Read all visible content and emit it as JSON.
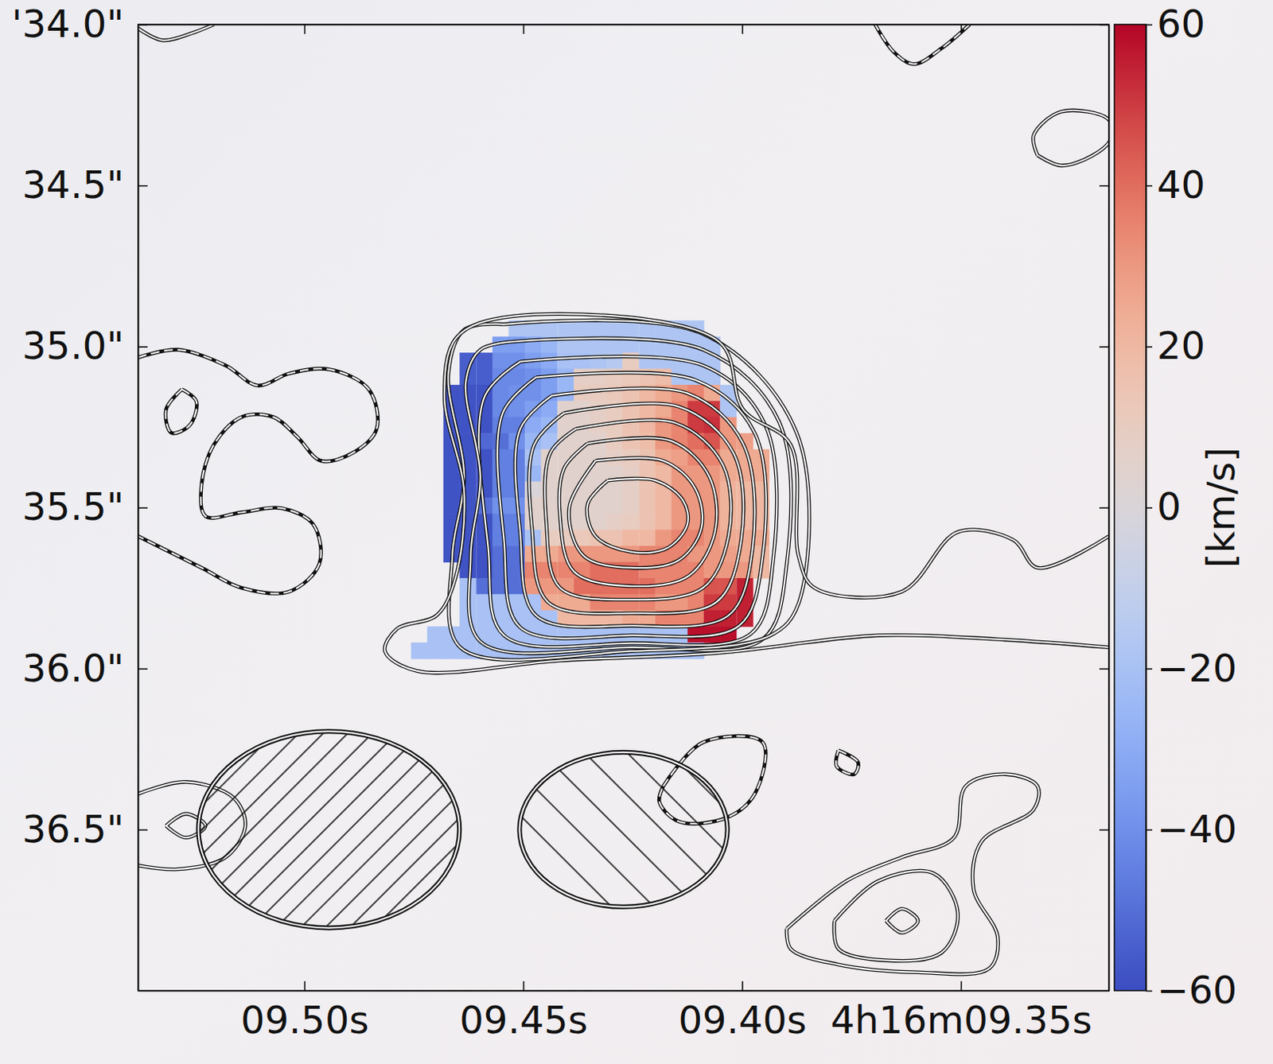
{
  "chart_data": {
    "type": "heatmap",
    "xlim": [
      9.538,
      9.3162
    ],
    "ylim": [
      34.0,
      37.0
    ],
    "xticks": [
      {
        "value": 9.5,
        "label": "09.50s"
      },
      {
        "value": 9.45,
        "label": "09.45s"
      },
      {
        "value": 9.4,
        "label": "09.40s"
      },
      {
        "value": 9.35,
        "label": "4h16m09.35s"
      }
    ],
    "yticks": [
      {
        "value": 34.0,
        "label": "'34.0\""
      },
      {
        "value": 34.5,
        "label": "34.5\""
      },
      {
        "value": 35.0,
        "label": "35.0\""
      },
      {
        "value": 35.5,
        "label": "35.5\""
      },
      {
        "value": 36.0,
        "label": "36.0\""
      },
      {
        "value": 36.5,
        "label": "36.5\""
      }
    ],
    "colorbar": {
      "range": [
        -60,
        60
      ],
      "ticks": [
        {
          "value": -60,
          "label": "−60"
        },
        {
          "value": -40,
          "label": "−40"
        },
        {
          "value": -20,
          "label": "−20"
        },
        0,
        20,
        40,
        60
      ],
      "label": "[km/s]"
    },
    "cells": {
      "x": [
        9.4738,
        9.4701,
        9.4664,
        9.4627,
        9.4589,
        9.4552,
        9.4515,
        9.4478,
        9.4441,
        9.4403,
        9.4366,
        9.4329,
        9.4292,
        9.4255,
        9.4217,
        9.418,
        9.4143,
        9.4106,
        9.4069,
        9.4032,
        9.3994,
        9.3957
      ],
      "y": [
        34.944,
        34.994,
        35.044,
        35.094,
        35.144,
        35.194,
        35.244,
        35.294,
        35.344,
        35.394,
        35.444,
        35.494,
        35.544,
        35.594,
        35.644,
        35.694,
        35.744,
        35.794,
        35.844,
        35.894,
        35.944
      ],
      "values": [
        [
          null,
          null,
          null,
          null,
          null,
          null,
          -18,
          -18,
          -18,
          -18,
          -18,
          -18,
          -18,
          -18,
          -18,
          -18,
          -18,
          -18,
          null,
          null,
          null,
          null
        ],
        [
          null,
          null,
          null,
          null,
          null,
          -35,
          -35,
          -30,
          -25,
          -18,
          -18,
          -18,
          -18,
          -18,
          -18,
          -18,
          -18,
          -18,
          -18,
          null,
          null,
          null
        ],
        [
          null,
          null,
          null,
          -55,
          -55,
          -40,
          -40,
          -35,
          -30,
          -20,
          -20,
          -18,
          -15,
          10,
          -18,
          -18,
          -18,
          -18,
          -18,
          null,
          null,
          null
        ],
        [
          null,
          null,
          null,
          -55,
          -55,
          -42,
          -42,
          -40,
          -35,
          -25,
          8,
          8,
          10,
          12,
          15,
          18,
          -18,
          -18,
          -18,
          null,
          null,
          null
        ],
        [
          null,
          null,
          -58,
          -58,
          -58,
          -42,
          -40,
          -40,
          -35,
          -25,
          10,
          10,
          12,
          15,
          20,
          25,
          30,
          35,
          25,
          -18,
          null,
          null
        ],
        [
          null,
          null,
          -58,
          -58,
          -58,
          -42,
          -40,
          -35,
          -30,
          5,
          5,
          8,
          10,
          15,
          20,
          25,
          35,
          50,
          50,
          -18,
          null,
          null
        ],
        [
          null,
          null,
          -58,
          -58,
          -58,
          -45,
          -45,
          -30,
          -25,
          5,
          5,
          8,
          10,
          15,
          20,
          30,
          35,
          50,
          52,
          30,
          null,
          null
        ],
        [
          null,
          null,
          -58,
          -58,
          -52,
          -50,
          -40,
          -25,
          -20,
          5,
          5,
          5,
          10,
          15,
          18,
          30,
          35,
          40,
          45,
          30,
          28,
          null
        ],
        [
          null,
          null,
          -58,
          -58,
          -58,
          -45,
          -45,
          -20,
          5,
          5,
          5,
          5,
          8,
          10,
          15,
          25,
          28,
          35,
          35,
          25,
          25,
          25
        ],
        [
          null,
          null,
          -58,
          -58,
          -58,
          -45,
          -45,
          -25,
          5,
          5,
          5,
          5,
          5,
          8,
          15,
          20,
          30,
          30,
          30,
          25,
          25,
          25
        ],
        [
          null,
          null,
          -58,
          -58,
          -58,
          -45,
          -45,
          0,
          5,
          5,
          5,
          5,
          5,
          8,
          15,
          20,
          30,
          30,
          30,
          22,
          20,
          20
        ],
        [
          null,
          null,
          -58,
          -58,
          -50,
          -40,
          -40,
          5,
          5,
          5,
          5,
          5,
          5,
          8,
          15,
          20,
          30,
          30,
          30,
          22,
          20,
          20
        ],
        [
          null,
          null,
          -58,
          -58,
          -58,
          -45,
          -45,
          5,
          5,
          5,
          5,
          5,
          8,
          10,
          15,
          20,
          30,
          30,
          30,
          22,
          20,
          20
        ],
        [
          null,
          null,
          -58,
          -58,
          -58,
          -45,
          -45,
          -20,
          10,
          10,
          12,
          15,
          15,
          20,
          20,
          30,
          35,
          35,
          30,
          25,
          25,
          25
        ],
        [
          null,
          null,
          -58,
          -58,
          -58,
          -50,
          -50,
          25,
          25,
          30,
          30,
          30,
          30,
          30,
          35,
          35,
          35,
          30,
          30,
          28,
          25,
          20
        ],
        [
          null,
          null,
          null,
          -58,
          -58,
          -50,
          -50,
          35,
          35,
          35,
          35,
          40,
          40,
          40,
          35,
          35,
          35,
          35,
          30,
          30,
          30,
          20
        ],
        [
          null,
          null,
          null,
          -20,
          -50,
          -50,
          -50,
          30,
          30,
          30,
          40,
          40,
          40,
          40,
          40,
          35,
          35,
          35,
          45,
          45,
          55,
          null
        ],
        [
          null,
          null,
          null,
          -20,
          -20,
          -20,
          -20,
          -20,
          25,
          25,
          25,
          35,
          35,
          35,
          35,
          30,
          30,
          35,
          50,
          50,
          55,
          null
        ],
        [
          null,
          null,
          null,
          -20,
          -20,
          -20,
          -20,
          -20,
          -20,
          20,
          20,
          20,
          20,
          25,
          25,
          35,
          35,
          35,
          55,
          55,
          55,
          null
        ],
        [
          null,
          -20,
          -20,
          -20,
          -20,
          -20,
          -20,
          -20,
          -20,
          -20,
          -20,
          -20,
          -20,
          -20,
          -20,
          -20,
          -20,
          58,
          58,
          58,
          null,
          null
        ],
        [
          -20,
          -20,
          -20,
          -20,
          -20,
          -20,
          -20,
          -20,
          -20,
          -20,
          -20,
          -20,
          -20,
          -20,
          -20,
          -20,
          -20,
          -20,
          null,
          null,
          null,
          null
        ]
      ]
    },
    "contours": [
      {
        "x": [
          9.4307,
          9.4198,
          9.4135,
          9.4125,
          9.4171,
          9.4253,
          9.4335,
          9.4353,
          9.4307
        ],
        "y": [
          35.416,
          35.416,
          35.478,
          35.552,
          35.626,
          35.638,
          35.589,
          35.49,
          35.416
        ],
        "line_style": "solid"
      },
      {
        "x": [
          9.4335,
          9.418,
          9.4107,
          9.4093,
          9.4144,
          9.4253,
          9.4362,
          9.4395,
          9.4335
        ],
        "y": [
          35.355,
          35.355,
          35.441,
          35.564,
          35.663,
          35.687,
          35.65,
          35.502,
          35.355
        ],
        "line_style": "solid"
      },
      {
        "x": [
          9.4353,
          9.4162,
          9.4075,
          9.4062,
          9.4122,
          9.4253,
          9.4384,
          9.4416,
          9.4407,
          9.4353
        ],
        "y": [
          35.301,
          35.293,
          35.404,
          35.576,
          35.712,
          35.744,
          35.699,
          35.527,
          35.379,
          35.301
        ],
        "line_style": "solid"
      },
      {
        "x": [
          9.438,
          9.4153,
          9.4044,
          9.4031,
          9.4089,
          9.4253,
          9.4416,
          9.4447,
          9.4438,
          9.438
        ],
        "y": [
          35.256,
          35.237,
          35.367,
          35.589,
          35.749,
          35.786,
          35.749,
          35.552,
          35.33,
          35.256
        ],
        "line_style": "solid"
      },
      {
        "x": [
          9.4407,
          9.4144,
          9.402,
          9.4002,
          9.4058,
          9.4253,
          9.4444,
          9.448,
          9.4475,
          9.4407
        ],
        "y": [
          35.207,
          35.187,
          35.33,
          35.601,
          35.793,
          35.828,
          35.793,
          35.564,
          35.305,
          35.207
        ],
        "line_style": "solid"
      },
      {
        "x": [
          9.4435,
          9.4125,
          9.3998,
          9.3976,
          9.4031,
          9.4253,
          9.4471,
          9.4507,
          9.4507,
          9.4435
        ],
        "y": [
          35.153,
          35.145,
          35.301,
          35.626,
          35.835,
          35.867,
          35.835,
          35.576,
          35.256,
          35.153
        ],
        "line_style": "solid"
      },
      {
        "x": [
          9.4471,
          9.4107,
          9.3971,
          9.3953,
          9.4007,
          9.4253,
          9.4507,
          9.4544,
          9.4547,
          9.4471
        ],
        "y": [
          35.096,
          35.104,
          35.269,
          35.65,
          35.867,
          35.897,
          35.872,
          35.601,
          35.207,
          35.096
        ],
        "line_style": "solid"
      },
      {
        "x": [
          9.4507,
          9.4089,
          9.3947,
          9.3929,
          9.398,
          9.4253,
          9.4544,
          9.458,
          9.4589,
          9.4507
        ],
        "y": [
          35.047,
          35.059,
          35.244,
          35.663,
          35.892,
          35.921,
          35.897,
          35.626,
          35.158,
          35.047
        ],
        "line_style": "solid"
      },
      {
        "x": [
          9.4525,
          9.4089,
          9.3916,
          9.3898,
          9.3953,
          9.4253,
          9.4598,
          9.462,
          9.4598,
          9.4631,
          9.4598,
          9.4525
        ],
        "y": [
          34.985,
          35.01,
          35.232,
          35.675,
          35.909,
          35.934,
          35.916,
          35.65,
          35.404,
          35.108,
          35.01,
          34.985
        ],
        "line_style": "solid"
      },
      {
        "x": [
          9.4544,
          9.4089,
          9.3875,
          9.3871,
          9.3935,
          9.4253,
          9.4644,
          9.4662,
          9.4635,
          9.4671,
          9.4635,
          9.4544
        ],
        "y": [
          34.931,
          34.961,
          35.269,
          35.798,
          35.897,
          35.946,
          35.934,
          35.65,
          35.404,
          35.084,
          34.948,
          34.931
        ],
        "line_style": "solid"
      },
      {
        "x": [
          9.3162,
          9.3325,
          9.338,
          9.3507,
          9.3635,
          9.3835,
          9.3871,
          9.3889,
          9.3998,
          9.4053,
          9.4525,
          9.4653,
          9.468,
          9.4635,
          9.4656,
          9.4698,
          9.4789,
          9.4816,
          9.4744,
          9.4416,
          9.4053,
          9.3689,
          9.3416,
          9.3162
        ],
        "y": [
          35.589,
          35.687,
          35.601,
          35.576,
          35.761,
          35.749,
          35.65,
          35.305,
          35.195,
          34.985,
          34.906,
          34.973,
          35.158,
          35.453,
          35.724,
          35.835,
          35.877,
          35.946,
          36.007,
          35.975,
          35.951,
          35.897,
          35.909,
          35.934
        ],
        "line_style": "solid"
      },
      {
        "x": [
          9.3698,
          9.3653,
          9.3607,
          9.3544,
          9.348
        ],
        "y": [
          33.995,
          34.086,
          34.123,
          34.074,
          34.0
        ],
        "line_style": "dashed"
      },
      {
        "x": [
          9.3325,
          9.3271,
          9.3198,
          9.3158,
          9.3162,
          9.3271,
          9.3334,
          9.3325
        ],
        "y": [
          34.406,
          34.438,
          34.406,
          34.357,
          34.296,
          34.271,
          34.345,
          34.406
        ],
        "line_style": "solid"
      },
      {
        "x": [
          9.538,
          9.5325,
          9.5253,
          9.5207
        ],
        "y": [
          34.012,
          34.049,
          34.025,
          34.0
        ],
        "line_style": "solid"
      },
      {
        "x": [
          9.538,
          9.5289,
          9.518,
          9.5107,
          9.5035,
          9.4944,
          9.4853,
          9.4835,
          9.4889,
          9.4962,
          9.5016,
          9.5071,
          9.5144,
          9.5207,
          9.5235,
          9.5226,
          9.5144,
          9.5053,
          9.498,
          9.4966,
          9.5035,
          9.5144,
          9.5235,
          9.538
        ],
        "y": [
          35.034,
          35.01,
          35.059,
          35.121,
          35.084,
          35.071,
          35.133,
          35.256,
          35.33,
          35.355,
          35.281,
          35.219,
          35.219,
          35.305,
          35.429,
          35.527,
          35.515,
          35.502,
          35.552,
          35.675,
          35.761,
          35.749,
          35.687,
          35.589
        ],
        "line_style": "dashed"
      },
      {
        "x": [
          9.528,
          9.5247,
          9.5262,
          9.5304,
          9.5316,
          9.528
        ],
        "y": [
          35.133,
          35.17,
          35.244,
          35.268,
          35.195,
          35.133
        ],
        "line_style": "dashed"
      },
      {
        "x": [
          9.418,
          9.4089,
          9.3953,
          9.3971,
          9.4035,
          9.4144,
          9.4189,
          9.418
        ],
        "y": [
          36.365,
          36.229,
          36.229,
          36.389,
          36.463,
          36.475,
          36.414,
          36.365
        ],
        "line_style": "dashed"
      },
      {
        "x": [
          9.378,
          9.3735,
          9.3744,
          9.3784,
          9.378
        ],
        "y": [
          36.254,
          36.291,
          36.328,
          36.303,
          36.254
        ],
        "line_style": "dashed"
      },
      {
        "x": [
          9.3898,
          9.3762,
          9.3635,
          9.3516,
          9.3489,
          9.3398,
          9.3325,
          9.3334,
          9.3453,
          9.3471,
          9.3416,
          9.3435,
          9.3598,
          9.378,
          9.3889,
          9.3898
        ],
        "y": [
          36.808,
          36.66,
          36.586,
          36.525,
          36.365,
          36.328,
          36.365,
          36.438,
          36.537,
          36.685,
          36.833,
          36.931,
          36.943,
          36.919,
          36.87,
          36.808
        ],
        "line_style": "solid"
      },
      {
        "x": [
          9.3789,
          9.3689,
          9.3562,
          9.3507,
          9.3544,
          9.3671,
          9.378,
          9.3789
        ],
        "y": [
          36.783,
          36.66,
          36.636,
          36.759,
          36.882,
          36.906,
          36.87,
          36.783
        ],
        "line_style": "solid"
      },
      {
        "x": [
          9.3671,
          9.3635,
          9.3598,
          9.3635,
          9.3671
        ],
        "y": [
          36.783,
          36.746,
          36.783,
          36.82,
          36.783
        ],
        "line_style": "solid"
      },
      {
        "x": [
          9.538,
          9.5271,
          9.5162,
          9.5135,
          9.518,
          9.5289,
          9.538
        ],
        "y": [
          36.389,
          36.352,
          36.401,
          36.488,
          36.586,
          36.623,
          36.611
        ],
        "line_style": "solid"
      },
      {
        "x": [
          9.5316,
          9.5271,
          9.5226,
          9.5271,
          9.5316
        ],
        "y": [
          36.488,
          36.451,
          36.488,
          36.525,
          36.488
        ],
        "line_style": "solid"
      }
    ],
    "beams": [
      {
        "x": 9.4944,
        "y": 36.5,
        "width": 0.81,
        "height": 0.61
      },
      {
        "x": 9.4271,
        "y": 36.5,
        "width": 0.645,
        "height": 0.48
      }
    ]
  }
}
